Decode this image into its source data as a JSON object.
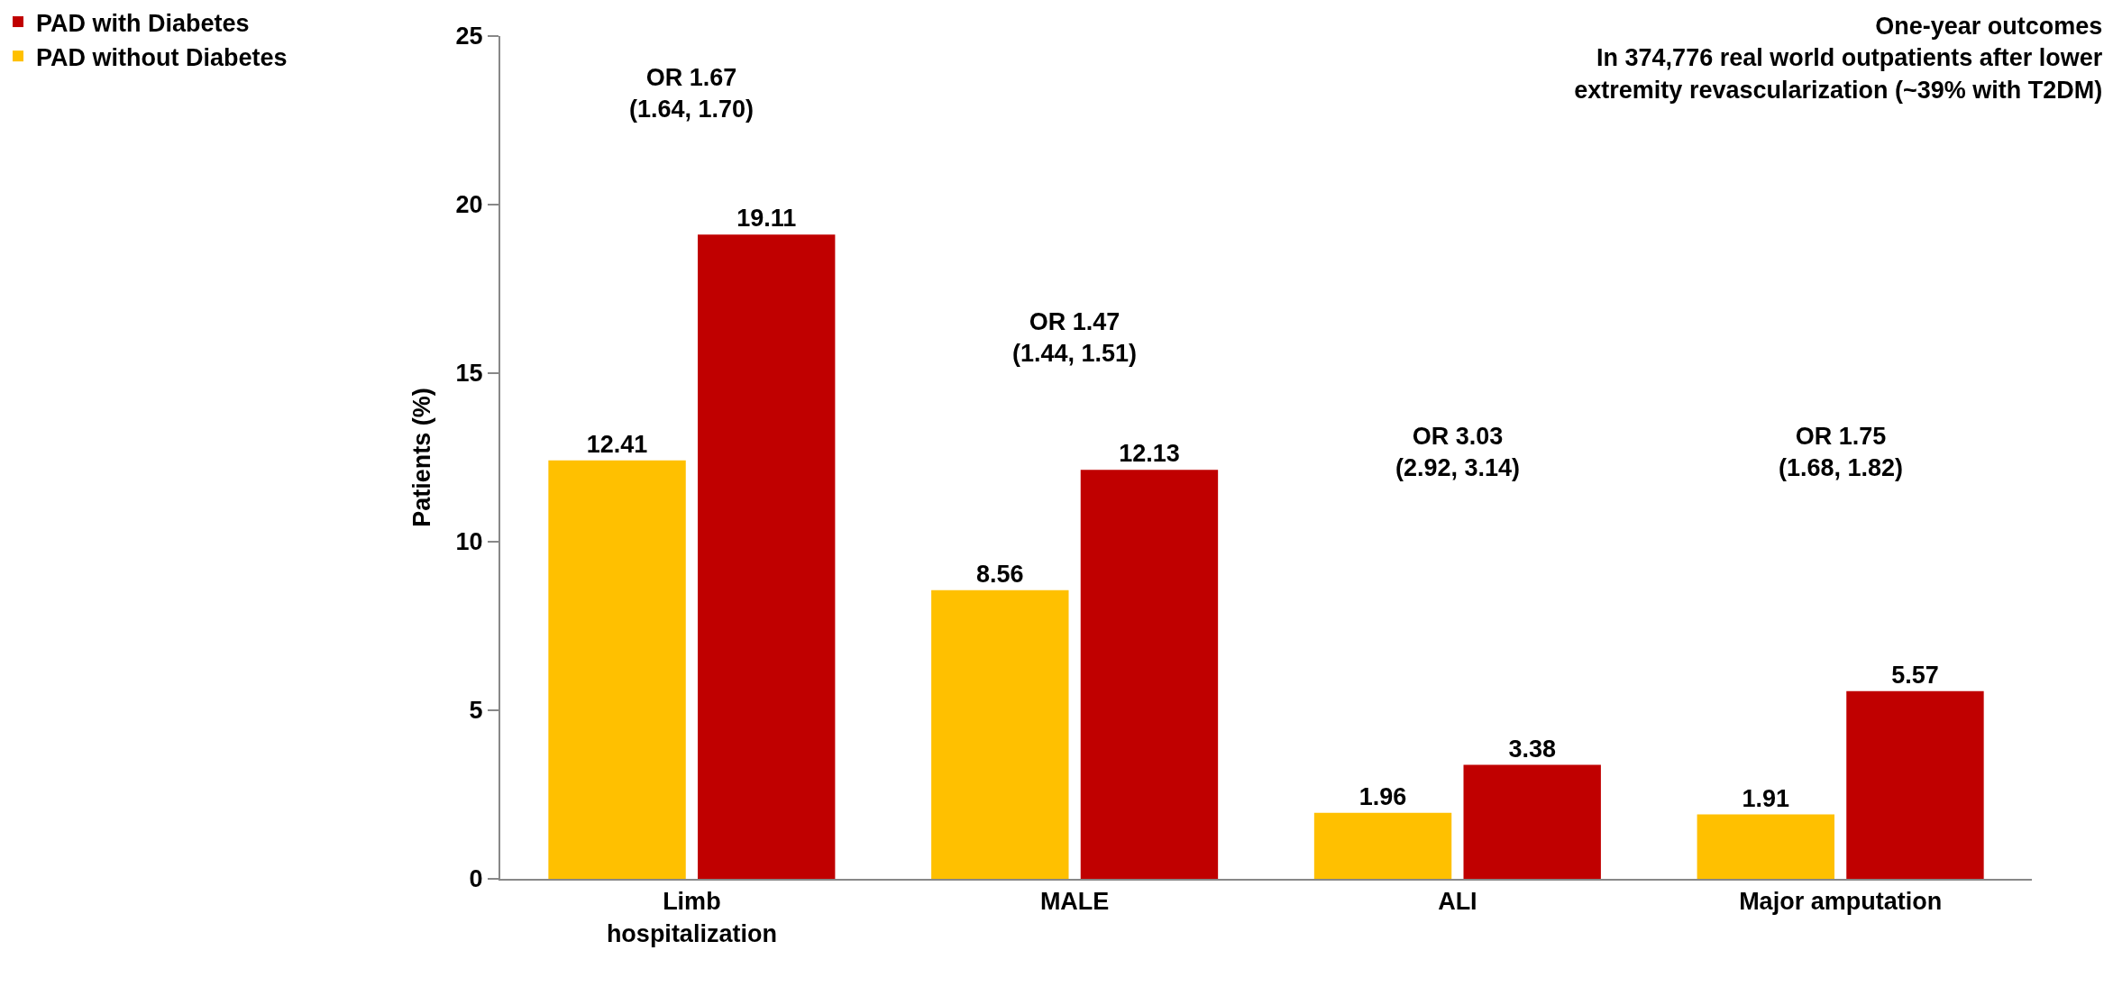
{
  "chart_data": {
    "type": "bar",
    "title": "One-year outcomes\nIn 374,776 real world outpatients after lower\nextremity revascularization (~39% with T2DM)",
    "ylabel": "Patients (%)",
    "categories": [
      "Limb\nhospitalization",
      "MALE",
      "ALI",
      "Major amputation"
    ],
    "series": [
      {
        "name": "PAD without Diabetes",
        "color": "#ffc000",
        "values": [
          12.41,
          8.56,
          1.96,
          1.91
        ]
      },
      {
        "name": "PAD with Diabetes",
        "color": "#c00000",
        "values": [
          19.11,
          12.13,
          3.38,
          5.57
        ]
      }
    ],
    "ylim": [
      0,
      25
    ],
    "yticks": [
      0,
      5,
      10,
      15,
      20,
      25
    ],
    "grid": false,
    "legend": "top left",
    "data_labels": true,
    "annotations": [
      "OR 1.67\n(1.64, 1.70)",
      "OR 1.47\n(1.44, 1.51)",
      "OR 3.03\n(2.92, 3.14)",
      "OR 1.75\n(1.68, 1.82)"
    ]
  }
}
